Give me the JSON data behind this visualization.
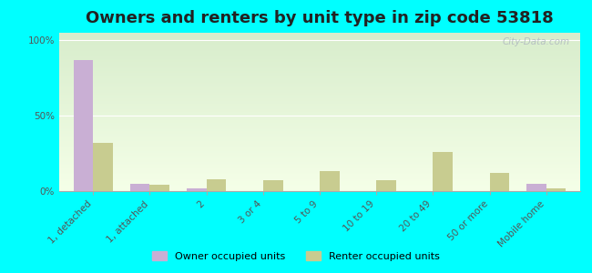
{
  "title": "Owners and renters by unit type in zip code 53818",
  "categories": [
    "1, detached",
    "1, attached",
    "2",
    "3 or 4",
    "5 to 9",
    "10 to 19",
    "20 to 49",
    "50 or more",
    "Mobile home"
  ],
  "owner_values": [
    87,
    5,
    2,
    0,
    0,
    0,
    0,
    0,
    5
  ],
  "renter_values": [
    32,
    4,
    8,
    7,
    13,
    7,
    26,
    12,
    2
  ],
  "owner_color": "#c9afd4",
  "renter_color": "#c8cc90",
  "plot_bg_color": "#eef5e4",
  "bg_outer": "#00ffff",
  "ylabel_ticks": [
    "0%",
    "50%",
    "100%"
  ],
  "ytick_vals": [
    0,
    50,
    100
  ],
  "ylim": [
    0,
    105
  ],
  "bar_width": 0.35,
  "legend_owner": "Owner occupied units",
  "legend_renter": "Renter occupied units",
  "watermark": "City-Data.com",
  "title_fontsize": 13,
  "tick_fontsize": 7.5
}
